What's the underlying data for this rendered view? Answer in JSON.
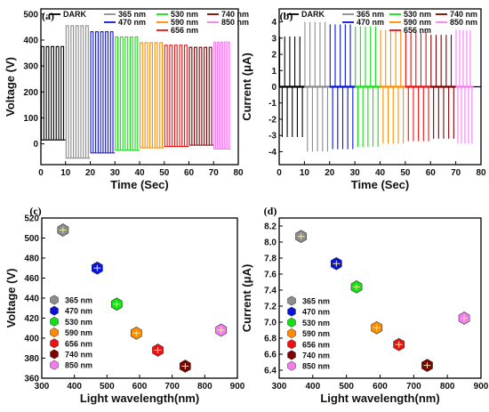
{
  "colors": {
    "DARK": "#000000",
    "365 nm": "#8c8c8c",
    "470 nm": "#0a14d9",
    "530 nm": "#12e012",
    "590 nm": "#ff8c00",
    "656 nm": "#ee1111",
    "740 nm": "#800000",
    "850 nm": "#f57cf0"
  },
  "chart_data": [
    {
      "panel": "(a)",
      "type": "line",
      "xlabel": "Time (Sec)",
      "ylabel": "Voltage (V)",
      "xlim": [
        0,
        80
      ],
      "ylim": [
        -80,
        520
      ],
      "xticks": [
        0,
        10,
        20,
        30,
        40,
        50,
        60,
        70,
        80
      ],
      "yticks": [
        0,
        100,
        200,
        300,
        400,
        500
      ],
      "legend": [
        "DARK",
        "365 nm",
        "470 nm",
        "530 nm",
        "590 nm",
        "656 nm",
        "740 nm",
        "850 nm"
      ],
      "series": [
        {
          "name": "DARK",
          "t_start": 0,
          "t_end": 10,
          "high": 375,
          "low": 15
        },
        {
          "name": "365 nm",
          "t_start": 10,
          "t_end": 20,
          "high": 455,
          "low": -55
        },
        {
          "name": "470 nm",
          "t_start": 20,
          "t_end": 30,
          "high": 432,
          "low": -35
        },
        {
          "name": "530 nm",
          "t_start": 30,
          "t_end": 40,
          "high": 412,
          "low": -25
        },
        {
          "name": "590 nm",
          "t_start": 40,
          "t_end": 50,
          "high": 390,
          "low": -15
        },
        {
          "name": "656 nm",
          "t_start": 50,
          "t_end": 60,
          "high": 380,
          "low": -10
        },
        {
          "name": "740 nm",
          "t_start": 60,
          "t_end": 70,
          "high": 372,
          "low": -5
        },
        {
          "name": "850 nm",
          "t_start": 70,
          "t_end": 77,
          "high": 392,
          "low": -20
        }
      ]
    },
    {
      "panel": "(b)",
      "type": "line",
      "xlabel": "Time (Sec)",
      "ylabel": "Current (μA)",
      "xlim": [
        0,
        80
      ],
      "ylim": [
        -4.8,
        4.8
      ],
      "xticks": [
        0,
        10,
        20,
        30,
        40,
        50,
        60,
        70,
        80
      ],
      "yticks": [
        -4,
        -3,
        -2,
        -1,
        0,
        1,
        2,
        3,
        4
      ],
      "legend": [
        "DARK",
        "365 nm",
        "470 nm",
        "530 nm",
        "590 nm",
        "656 nm",
        "740 nm",
        "850 nm"
      ],
      "series": [
        {
          "name": "DARK",
          "t_start": 0,
          "t_end": 10,
          "high": 3.1,
          "low": -3.1
        },
        {
          "name": "365 nm",
          "t_start": 10,
          "t_end": 20,
          "high": 4.0,
          "low": -4.0
        },
        {
          "name": "470 nm",
          "t_start": 20,
          "t_end": 30,
          "high": 3.85,
          "low": -3.85
        },
        {
          "name": "530 nm",
          "t_start": 30,
          "t_end": 40,
          "high": 3.7,
          "low": -3.7
        },
        {
          "name": "590 nm",
          "t_start": 40,
          "t_end": 50,
          "high": 3.5,
          "low": -3.5
        },
        {
          "name": "656 nm",
          "t_start": 50,
          "t_end": 60,
          "high": 3.35,
          "low": -3.35
        },
        {
          "name": "740 nm",
          "t_start": 60,
          "t_end": 70,
          "high": 3.2,
          "low": -3.2
        },
        {
          "name": "850 nm",
          "t_start": 70,
          "t_end": 77,
          "high": 3.5,
          "low": -3.5
        }
      ]
    },
    {
      "panel": "(c)",
      "type": "scatter",
      "xlabel": "Light wavelength(nm)",
      "ylabel": "Voltage (V)",
      "xlim": [
        300,
        900
      ],
      "ylim": [
        360,
        520
      ],
      "xticks": [
        300,
        400,
        500,
        600,
        700,
        800,
        900
      ],
      "yticks": [
        360,
        380,
        400,
        420,
        440,
        460,
        480,
        500,
        520
      ],
      "legend": [
        "365 nm",
        "470 nm",
        "530 nm",
        "590 nm",
        "656 nm",
        "740 nm",
        "850 nm"
      ],
      "points": [
        {
          "name": "365 nm",
          "x": 365,
          "y": 508
        },
        {
          "name": "470 nm",
          "x": 470,
          "y": 470
        },
        {
          "name": "530 nm",
          "x": 530,
          "y": 434
        },
        {
          "name": "590 nm",
          "x": 590,
          "y": 405
        },
        {
          "name": "656 nm",
          "x": 656,
          "y": 388
        },
        {
          "name": "740 nm",
          "x": 740,
          "y": 372
        },
        {
          "name": "850 nm",
          "x": 850,
          "y": 408
        }
      ]
    },
    {
      "panel": "(d)",
      "type": "scatter",
      "xlabel": "Light wavelength(nm)",
      "ylabel": "Current (μA)",
      "xlim": [
        300,
        900
      ],
      "ylim": [
        6.3,
        8.3
      ],
      "xticks": [
        300,
        400,
        500,
        600,
        700,
        800,
        900
      ],
      "yticks": [
        6.4,
        6.6,
        6.8,
        7.0,
        7.2,
        7.4,
        7.6,
        7.8,
        8.0,
        8.2
      ],
      "legend": [
        "365 nm",
        "470 nm",
        "530 nm",
        "590 nm",
        "656 nm",
        "740 nm",
        "850 nm"
      ],
      "points": [
        {
          "name": "365 nm",
          "x": 365,
          "y": 8.07
        },
        {
          "name": "470 nm",
          "x": 470,
          "y": 7.73
        },
        {
          "name": "530 nm",
          "x": 530,
          "y": 7.44
        },
        {
          "name": "590 nm",
          "x": 590,
          "y": 6.93
        },
        {
          "name": "656 nm",
          "x": 656,
          "y": 6.72
        },
        {
          "name": "740 nm",
          "x": 740,
          "y": 6.46
        },
        {
          "name": "850 nm",
          "x": 850,
          "y": 7.05
        }
      ]
    }
  ]
}
